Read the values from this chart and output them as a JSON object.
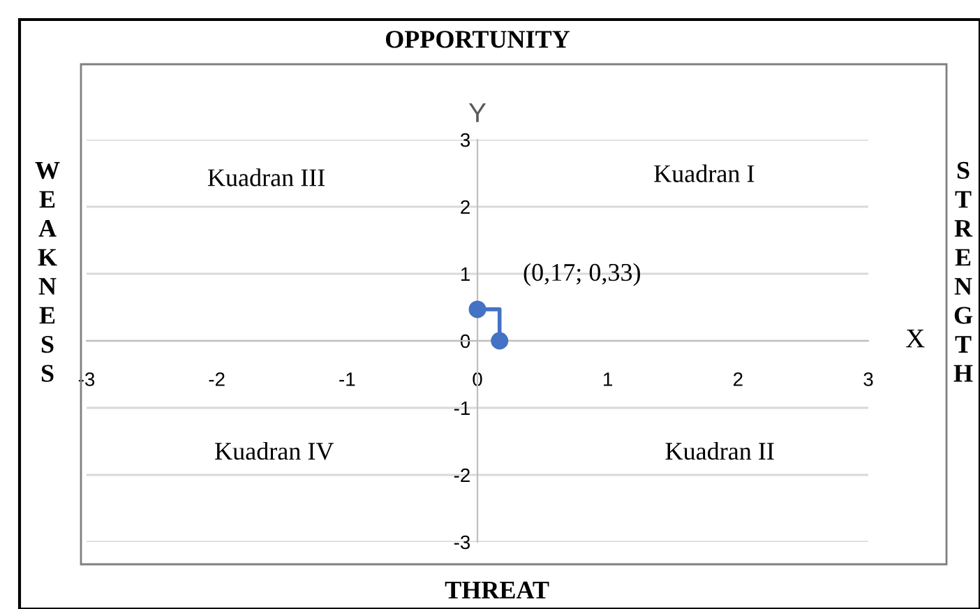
{
  "chart_data": {
    "type": "step",
    "title": "OPPORTUNITY",
    "xlabel": "X",
    "ylabel": "Y",
    "annotations": [
      "THREAT",
      "WEAKNESS",
      "STRENGTH",
      "Kuadran I",
      "Kuadran II",
      "Kuadran III",
      "Kuadran IV",
      {
        "text": "(0,17; 0,33)",
        "x": 0.17,
        "y": 0.47
      }
    ],
    "series": [
      {
        "color": "#4472c4",
        "x": [
          0,
          0.17
        ],
        "values": [
          0.47,
          0
        ]
      }
    ],
    "marker": "circle",
    "grid": "y",
    "xlim": [
      -3,
      3
    ],
    "ylim": [
      -3,
      3
    ],
    "xticks": [
      -3,
      -2,
      -1,
      0,
      1,
      2,
      3
    ],
    "yticks": [
      -3,
      -2,
      -1,
      0,
      1,
      2,
      3
    ]
  }
}
